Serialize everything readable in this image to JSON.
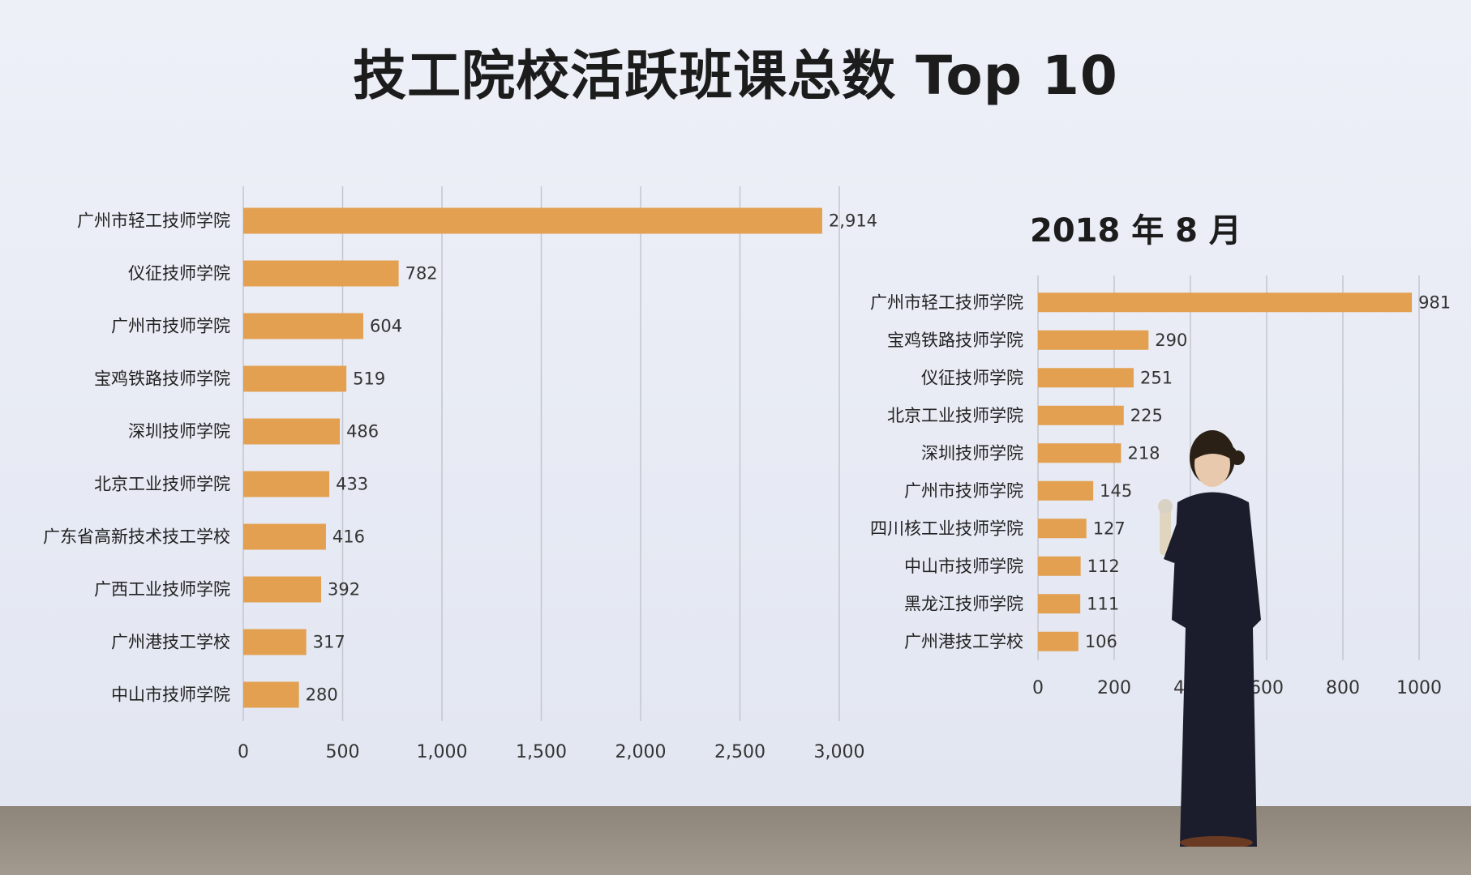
{
  "title": "技工院校活跃班课总数 Top 10",
  "bar_color": "#e2a050",
  "chart_data": [
    {
      "type": "bar",
      "orientation": "horizontal",
      "title": "",
      "categories": [
        "广州市轻工技师学院",
        "仪征技师学院",
        "广州市技师学院",
        "宝鸡铁路技师学院",
        "深圳技师学院",
        "北京工业技师学院",
        "广东省高新技术技工学校",
        "广西工业技师学院",
        "广州港技工学校",
        "中山市技师学院"
      ],
      "values": [
        2914,
        782,
        604,
        519,
        486,
        433,
        416,
        392,
        317,
        280
      ],
      "value_labels": [
        "2,914",
        "782",
        "604",
        "519",
        "486",
        "433",
        "416",
        "392",
        "317",
        "280"
      ],
      "xlim": [
        0,
        3000
      ],
      "ticks": [
        0,
        500,
        1000,
        1500,
        2000,
        2500,
        3000
      ],
      "tick_labels": [
        "0",
        "500",
        "1,000",
        "1,500",
        "2,000",
        "2,500",
        "3,000"
      ],
      "grid": true
    },
    {
      "type": "bar",
      "orientation": "horizontal",
      "title": "2018 年 8 月",
      "categories": [
        "广州市轻工技师学院",
        "宝鸡铁路技师学院",
        "仪征技师学院",
        "北京工业技师学院",
        "深圳技师学院",
        "广州市技师学院",
        "四川核工业技师学院",
        "中山市技师学院",
        "黑龙江技师学院",
        "广州港技工学校"
      ],
      "values": [
        981,
        290,
        251,
        225,
        218,
        145,
        127,
        112,
        111,
        106
      ],
      "value_labels": [
        "981",
        "290",
        "251",
        "225",
        "218",
        "145",
        "127",
        "112",
        "111",
        "106"
      ],
      "xlim": [
        0,
        1000
      ],
      "ticks": [
        0,
        200,
        400,
        600,
        800,
        1000
      ],
      "tick_labels": [
        "0",
        "200",
        "400",
        "600",
        "800",
        "1000"
      ],
      "grid": true
    }
  ]
}
